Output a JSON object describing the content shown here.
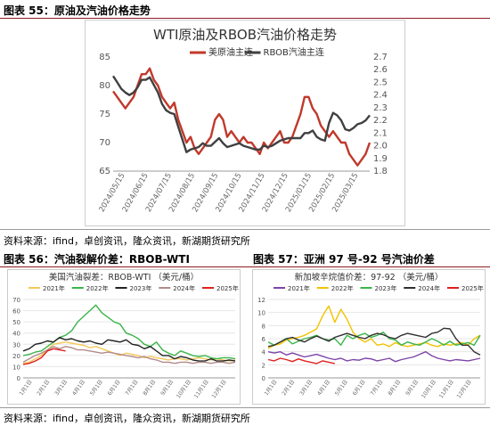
{
  "figures": {
    "fig55": {
      "caption": "图表 55：原油及汽油价格走势"
    },
    "fig56": {
      "caption": "图表 56：汽油裂解价差：RBOB-WTI"
    },
    "fig57": {
      "caption": "图表 57：亚洲 97 号-92 号汽油价差"
    }
  },
  "source_note": "资料来源：ifind，卓创资讯，隆众资讯，新湖期货研究所",
  "colors": {
    "accent": "#8c1c24",
    "crude": "#c0392b",
    "rbob": "#404040"
  },
  "chart_data": [
    {
      "id": "crude_vs_rbob",
      "type": "line",
      "title": "WTI原油及RBOB汽油价格走势",
      "ylim": [
        65,
        85
      ],
      "y_ticks": [
        65,
        70,
        75,
        80,
        85
      ],
      "y2lim": [
        1.8,
        2.7
      ],
      "y2_ticks": [
        1.8,
        1.9,
        2.0,
        2.1,
        2.2,
        2.3,
        2.4,
        2.5,
        2.6,
        2.7
      ],
      "x_ticks": [
        "2024/05/15",
        "2024/06/15",
        "2024/07/15",
        "2024/08/15",
        "2024/09/15",
        "2024/10/15",
        "2024/11/15",
        "2024/12/15",
        "2025/01/15",
        "2025/02/15",
        "2025/03/15"
      ],
      "legend": "top",
      "series": [
        {
          "name": "美原油主连",
          "axis": "left",
          "color": "#c0392b",
          "values": [
            79,
            78,
            77,
            76,
            77,
            78,
            80,
            82,
            82,
            83,
            81,
            80,
            78,
            77,
            76,
            77,
            74,
            72,
            70,
            71,
            69,
            68,
            69,
            70,
            71,
            74,
            75,
            74,
            71,
            72,
            71,
            70,
            71,
            70,
            70,
            69,
            68,
            70,
            69,
            70,
            71,
            72,
            70,
            70,
            71,
            73,
            75,
            78,
            78,
            76,
            75,
            73,
            72,
            71,
            72,
            71,
            70,
            70,
            68,
            67,
            66,
            67,
            68,
            70
          ]
        },
        {
          "name": "RBOB汽油主连",
          "axis": "right",
          "color": "#404040",
          "values": [
            2.55,
            2.5,
            2.45,
            2.42,
            2.4,
            2.42,
            2.46,
            2.52,
            2.52,
            2.54,
            2.48,
            2.42,
            2.33,
            2.28,
            2.26,
            2.25,
            2.15,
            2.05,
            1.95,
            1.97,
            1.98,
            1.99,
            2.02,
            2.0,
            2.0,
            2.03,
            2.06,
            2.02,
            1.99,
            2.0,
            2.01,
            2.02,
            2.0,
            1.99,
            1.98,
            1.97,
            1.97,
            2.0,
            1.99,
            2.0,
            2.02,
            2.04,
            2.05,
            2.06,
            2.06,
            2.06,
            2.06,
            2.1,
            2.1,
            2.12,
            2.07,
            2.05,
            2.04,
            2.18,
            2.26,
            2.24,
            2.2,
            2.13,
            2.12,
            2.14,
            2.17,
            2.18,
            2.2,
            2.24
          ]
        }
      ]
    },
    {
      "id": "rbob_wti_crack",
      "type": "line",
      "title": "美国汽油裂差：RBOB-WTI （美元/桶）",
      "ylim": [
        0,
        70
      ],
      "y_ticks": [
        0,
        10,
        20,
        30,
        40,
        50,
        60,
        70
      ],
      "x_ticks": [
        "1月1日",
        "2月1日",
        "3月1日",
        "4月1日",
        "5月1日",
        "6月1日",
        "7月1日",
        "8月1日",
        "9月1日",
        "10月1日",
        "11月1日",
        "12月1日"
      ],
      "legend": "top",
      "series": [
        {
          "name": "2021年",
          "color": "#f4c95a",
          "values": [
            13,
            14,
            17,
            20,
            25,
            30,
            31,
            32,
            31,
            30,
            29,
            27,
            28,
            26,
            24,
            22,
            20,
            22,
            21,
            20,
            18,
            19,
            18,
            17,
            16,
            17,
            17,
            16,
            17,
            18,
            17,
            16,
            17,
            16,
            15,
            16
          ]
        },
        {
          "name": "2022年",
          "color": "#3ab54a",
          "values": [
            20,
            21,
            23,
            24,
            28,
            32,
            36,
            38,
            42,
            50,
            55,
            60,
            65,
            58,
            54,
            50,
            48,
            40,
            38,
            35,
            30,
            28,
            32,
            25,
            22,
            20,
            24,
            22,
            20,
            19,
            20,
            18,
            17,
            18,
            18,
            17
          ]
        },
        {
          "name": "2023年",
          "color": "#222222",
          "values": [
            24,
            26,
            30,
            31,
            33,
            32,
            36,
            34,
            35,
            33,
            32,
            33,
            31,
            30,
            34,
            33,
            32,
            34,
            30,
            29,
            26,
            28,
            24,
            20,
            20,
            17,
            19,
            18,
            16,
            15,
            15,
            17,
            15,
            15,
            16,
            15
          ]
        },
        {
          "name": "2024年",
          "color": "#b48a8a",
          "values": [
            14,
            17,
            20,
            22,
            25,
            28,
            26,
            28,
            27,
            25,
            25,
            24,
            23,
            22,
            23,
            22,
            21,
            20,
            19,
            18,
            19,
            17,
            16,
            14,
            14,
            13,
            14,
            14,
            13,
            14,
            14,
            13,
            14,
            14,
            13,
            14
          ]
        },
        {
          "name": "2025年",
          "color": "#e02020",
          "values": [
            12,
            13,
            15,
            18,
            24,
            26,
            25,
            24
          ]
        }
      ]
    },
    {
      "id": "asia_97_92",
      "type": "line",
      "title": "新加坡辛烷值价差：97-92 （美元/桶）",
      "ylim": [
        0,
        12
      ],
      "y_ticks": [
        0,
        2,
        4,
        6,
        8,
        10,
        12
      ],
      "x_ticks": [
        "1月1日",
        "2月1日",
        "3月1日",
        "4月1日",
        "5月1日",
        "6月1日",
        "7月1日",
        "8月1日",
        "9月1日",
        "10月1日",
        "11月1日",
        "12月1日"
      ],
      "legend": "top",
      "series": [
        {
          "name": "2021年",
          "color": "#7c44a8",
          "values": [
            4.0,
            3.8,
            4.0,
            3.5,
            3.8,
            3.5,
            3.2,
            3.4,
            3.6,
            3.3,
            3.0,
            2.8,
            3.0,
            2.6,
            2.8,
            2.7,
            3.0,
            2.9,
            2.6,
            2.8,
            3.0,
            2.5,
            2.8,
            3.0,
            3.2,
            3.6,
            4.0,
            3.4,
            3.0,
            2.8,
            2.6,
            2.8,
            2.7,
            2.6,
            2.8,
            3.0
          ]
        },
        {
          "name": "2022年",
          "color": "#f2c200",
          "values": [
            4.5,
            5.0,
            5.2,
            5.8,
            6.0,
            6.2,
            6.5,
            7.0,
            7.5,
            9.5,
            11.0,
            8.5,
            10.5,
            9.0,
            7.0,
            6.0,
            5.5,
            6.0,
            5.0,
            5.2,
            4.8,
            5.4,
            5.0,
            4.8,
            5.0,
            5.2,
            5.4,
            5.0,
            4.8,
            5.2,
            5.0,
            5.2,
            5.4,
            5.0,
            6.0,
            6.5
          ]
        },
        {
          "name": "2023年",
          "color": "#3ab54a",
          "values": [
            5.5,
            5.0,
            5.5,
            6.0,
            5.2,
            5.6,
            6.0,
            6.2,
            6.5,
            6.0,
            5.8,
            6.0,
            5.0,
            6.5,
            6.0,
            6.5,
            6.8,
            6.2,
            6.5,
            7.0,
            6.0,
            5.8,
            5.0,
            5.5,
            5.2,
            5.0,
            5.5,
            6.0,
            5.6,
            5.0,
            5.6,
            5.0,
            5.2,
            5.4,
            5.0,
            6.5
          ]
        },
        {
          "name": "2024年",
          "color": "#303030",
          "values": [
            4.8,
            5.0,
            5.5,
            6.0,
            6.2,
            5.8,
            5.5,
            6.0,
            6.4,
            6.0,
            5.6,
            6.2,
            6.5,
            6.8,
            6.5,
            6.2,
            6.0,
            6.5,
            6.8,
            6.6,
            6.2,
            6.0,
            6.5,
            6.8,
            6.6,
            6.4,
            6.2,
            6.8,
            7.0,
            7.6,
            7.5,
            6.0,
            5.0,
            5.0,
            4.0,
            3.5
          ]
        },
        {
          "name": "2025年",
          "color": "#e02020",
          "values": [
            2.8,
            2.6,
            3.0,
            2.8,
            2.5,
            2.9,
            2.6,
            2.4,
            2.2,
            2.6,
            2.4,
            2.2
          ]
        }
      ]
    }
  ]
}
